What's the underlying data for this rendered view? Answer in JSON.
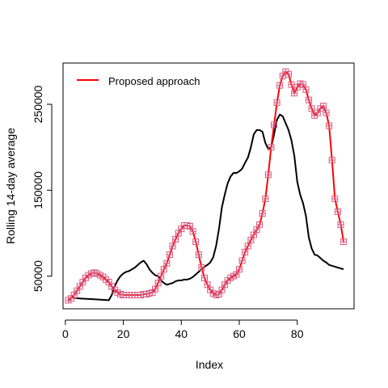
{
  "chart_data": {
    "type": "line",
    "title": "",
    "xlabel": "Index",
    "ylabel": "Rolling 14-day average",
    "xlim": [
      -0.8,
      99.6
    ],
    "ylim": [
      12000,
      298000
    ],
    "x_ticks": [
      0,
      20,
      40,
      60,
      80
    ],
    "y_ticks": [
      50000,
      150000,
      250000
    ],
    "y_tick_labels": [
      "50000",
      "150000",
      "250000"
    ],
    "grid": false,
    "legend": {
      "position": "top-left",
      "entries": [
        {
          "label": "Proposed approach",
          "color": "#ff0000"
        }
      ]
    },
    "series": [
      {
        "color": "#000000",
        "marker": "none",
        "x": [
          2,
          5,
          10,
          15,
          16,
          17,
          18,
          19,
          20,
          21,
          22,
          23,
          24,
          25,
          26,
          27,
          28,
          29,
          30,
          31,
          32,
          33,
          34,
          35,
          36,
          37,
          38,
          39,
          40,
          41,
          42,
          43,
          44,
          45,
          46,
          47,
          48,
          49,
          50,
          51,
          52,
          53,
          54,
          55,
          56,
          57,
          58,
          59,
          60,
          61,
          62,
          63,
          64,
          65,
          66,
          67,
          68,
          69,
          70,
          71,
          72,
          73,
          74,
          75,
          76,
          77,
          78,
          79,
          80,
          81,
          82,
          83,
          84,
          85,
          86,
          87,
          88,
          89,
          90,
          91,
          92,
          93,
          94,
          95,
          96
        ],
        "y": [
          25000,
          24000,
          23000,
          22000,
          28000,
          38000,
          45000,
          50000,
          53000,
          55000,
          56000,
          58000,
          60000,
          63000,
          66000,
          68000,
          64000,
          58000,
          54000,
          51000,
          50000,
          45000,
          42000,
          40000,
          41000,
          42000,
          44000,
          45000,
          45000,
          46000,
          46000,
          47000,
          49000,
          52000,
          55000,
          58000,
          61000,
          63000,
          66000,
          72000,
          85000,
          105000,
          130000,
          145000,
          158000,
          166000,
          170000,
          170000,
          172000,
          175000,
          182000,
          188000,
          200000,
          215000,
          220000,
          220000,
          218000,
          205000,
          198000,
          200000,
          215000,
          232000,
          238000,
          236000,
          228000,
          220000,
          208000,
          190000,
          160000,
          145000,
          135000,
          120000,
          95000,
          82000,
          75000,
          74000,
          71000,
          68000,
          66000,
          63000,
          62000,
          61000,
          60000,
          59000,
          58000
        ]
      },
      {
        "color": "#ff0000",
        "marker_color": "#d85a80",
        "marker": "boxed-plus",
        "x": [
          1,
          2,
          3,
          4,
          5,
          6,
          7,
          8,
          9,
          10,
          11,
          12,
          13,
          14,
          15,
          16,
          17,
          18,
          19,
          20,
          21,
          22,
          23,
          24,
          25,
          26,
          27,
          28,
          29,
          30,
          31,
          32,
          33,
          34,
          35,
          36,
          37,
          38,
          39,
          40,
          41,
          42,
          43,
          44,
          45,
          46,
          47,
          48,
          49,
          50,
          51,
          52,
          53,
          54,
          55,
          56,
          57,
          58,
          59,
          60,
          61,
          62,
          63,
          64,
          65,
          66,
          67,
          68,
          69,
          70,
          71,
          72,
          73,
          74,
          75,
          76,
          77,
          78,
          79,
          80,
          81,
          82,
          83,
          84,
          85,
          86,
          87,
          88,
          89,
          90,
          91,
          92,
          93,
          94,
          95,
          96
        ],
        "y": [
          22000,
          24000,
          28000,
          33000,
          38000,
          43000,
          48000,
          51000,
          53000,
          54000,
          53000,
          51000,
          49000,
          46000,
          43000,
          38000,
          34000,
          31000,
          29000,
          28000,
          28000,
          28000,
          28000,
          28000,
          28000,
          28000,
          29000,
          29000,
          30000,
          31000,
          35000,
          42000,
          50000,
          58000,
          65000,
          75000,
          85000,
          93000,
          100000,
          105000,
          109000,
          109000,
          108000,
          102000,
          90000,
          75000,
          60000,
          48000,
          40000,
          34000,
          30000,
          28000,
          29000,
          34000,
          40000,
          45000,
          48000,
          50000,
          52000,
          58000,
          68000,
          78000,
          85000,
          92000,
          98000,
          104000,
          110000,
          123000,
          140000,
          168000,
          200000,
          226000,
          252000,
          272000,
          283000,
          288000,
          285000,
          273000,
          263000,
          270000,
          274000,
          273000,
          267000,
          255000,
          245000,
          237000,
          240000,
          245000,
          248000,
          240000,
          225000,
          185000,
          140000,
          125000,
          110000,
          90000
        ]
      }
    ]
  }
}
